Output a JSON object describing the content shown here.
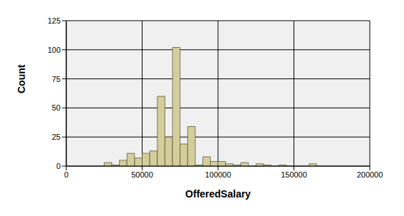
{
  "chart_data": {
    "type": "histogram",
    "xlabel": "OfferedSalary",
    "ylabel": "Count",
    "bins": [
      25000,
      30000,
      35000,
      40000,
      45000,
      50000,
      55000,
      60000,
      65000,
      70000,
      75000,
      80000,
      85000,
      90000,
      95000,
      100000,
      105000,
      110000,
      115000,
      120000,
      125000,
      130000,
      135000,
      140000,
      145000,
      150000,
      155000,
      160000,
      165000
    ],
    "values": [
      3,
      1,
      5,
      11,
      7,
      11,
      13,
      60,
      25,
      102,
      19,
      34,
      1,
      8,
      4,
      4,
      2,
      1,
      3,
      0,
      2,
      1,
      0,
      1,
      0,
      0,
      0,
      2
    ],
    "color": "#d4ce9b",
    "xlim": [
      0,
      200000
    ],
    "xticks": [
      0,
      50000,
      100000,
      150000,
      200000
    ],
    "ylim": [
      0,
      125
    ],
    "yticks": [
      0,
      25,
      50,
      75,
      100,
      125
    ],
    "grid": true
  }
}
